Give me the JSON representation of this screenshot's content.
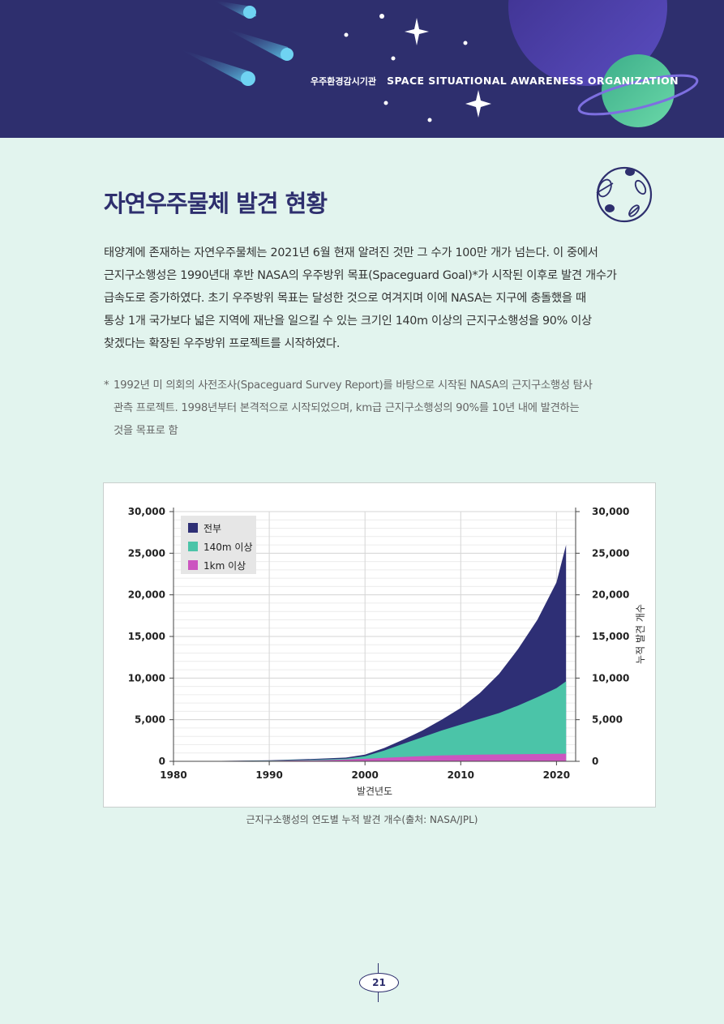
{
  "header": {
    "org_korean": "우주환경감시기관",
    "org_english": "SPACE SITUATIONAL AWARENESS ORGANIZATION",
    "colors": {
      "background": "#2e2f6e",
      "planet_purple": "#4a3fa0",
      "planet_green": "#4fc49a"
    }
  },
  "section": {
    "title": "자연우주물체 발견 현황",
    "icon": "planet-orbit-icon"
  },
  "body_lines": [
    "태양계에 존재하는 자연우주물체는 2021년 6월 현재 알려진 것만 그 수가 100만 개가 넘는다. 이 중에서",
    "근지구소행성은 1990년대 후반 NASA의 우주방위 목표(Spaceguard Goal)*가 시작된 이후로 발견 개수가",
    "급속도로 증가하였다. 초기 우주방위 목표는 달성한 것으로 여겨지며 이에 NASA는 지구에 충돌했을 때",
    "통상 1개 국가보다 넓은 지역에 재난을 일으킬 수 있는 크기인 140m 이상의 근지구소행성을 90% 이상",
    "찾겠다는 확장된 우주방위 프로젝트를 시작하였다."
  ],
  "footnote": {
    "marker": "*",
    "lines": [
      "1992년 미 의회의 사전조사(Spaceguard Survey Report)를 바탕으로 시작된 NASA의 근지구소행성 탐사",
      "관측 프로젝트. 1998년부터 본격적으로 시작되었으며, km급 근지구소행성의 90%를 10년 내에 발견하는",
      "것을 목표로 함"
    ]
  },
  "chart_data": {
    "type": "area",
    "title": "",
    "xlabel": "발견년도",
    "ylabel": "누적 발견 개수",
    "xlim": [
      1980,
      2022
    ],
    "ylim": [
      0,
      30000
    ],
    "x_ticks": [
      1980,
      1990,
      2000,
      2010,
      2020
    ],
    "y_ticks": [
      0,
      5000,
      10000,
      15000,
      20000,
      25000,
      30000
    ],
    "y_tick_labels": [
      "0",
      "5,000",
      "10,000",
      "15,000",
      "20,000",
      "25,000",
      "30,000"
    ],
    "grid": true,
    "legend_position": "top-left",
    "x": [
      1980,
      1985,
      1990,
      1995,
      1998,
      2000,
      2002,
      2004,
      2006,
      2008,
      2010,
      2012,
      2014,
      2016,
      2018,
      2020,
      2021
    ],
    "series": [
      {
        "name": "전부",
        "color": "#2e2f75",
        "values": [
          0,
          50,
          130,
          300,
          450,
          800,
          1600,
          2600,
          3700,
          5000,
          6400,
          8200,
          10500,
          13500,
          17000,
          21500,
          26000
        ]
      },
      {
        "name": "140m 이상",
        "color": "#4bc4a8",
        "values": [
          0,
          30,
          90,
          200,
          320,
          600,
          1300,
          2100,
          2900,
          3700,
          4400,
          5100,
          5800,
          6700,
          7700,
          8800,
          9600
        ]
      },
      {
        "name": "1km 이상",
        "color": "#cc55c0",
        "values": [
          0,
          20,
          60,
          130,
          200,
          300,
          420,
          530,
          620,
          700,
          760,
          800,
          830,
          860,
          880,
          900,
          920
        ]
      }
    ],
    "caption": "근지구소행성의 연도별 누적 발견 개수(출처: NASA/JPL)"
  },
  "page_number": "21"
}
